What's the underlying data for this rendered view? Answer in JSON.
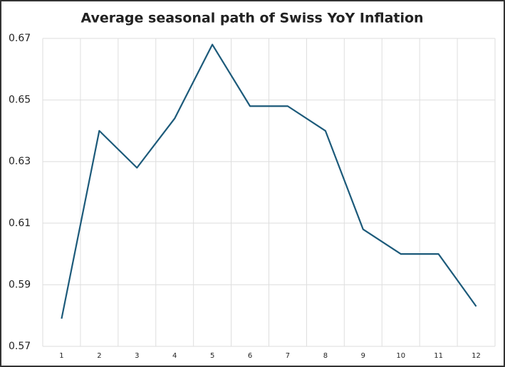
{
  "chart_data": {
    "type": "line",
    "title": "Average seasonal path of Swiss YoY Inflation",
    "categories": [
      "1",
      "2",
      "3",
      "4",
      "5",
      "6",
      "7",
      "8",
      "9",
      "10",
      "11",
      "12"
    ],
    "values": [
      0.579,
      0.64,
      0.628,
      0.644,
      0.668,
      0.648,
      0.648,
      0.64,
      0.608,
      0.6,
      0.6,
      0.583
    ],
    "color": "#1c5a7a",
    "ylim": [
      0.57,
      0.67
    ],
    "yticks": [
      0.57,
      0.59,
      0.61,
      0.63,
      0.65,
      0.67
    ],
    "grid": true
  }
}
